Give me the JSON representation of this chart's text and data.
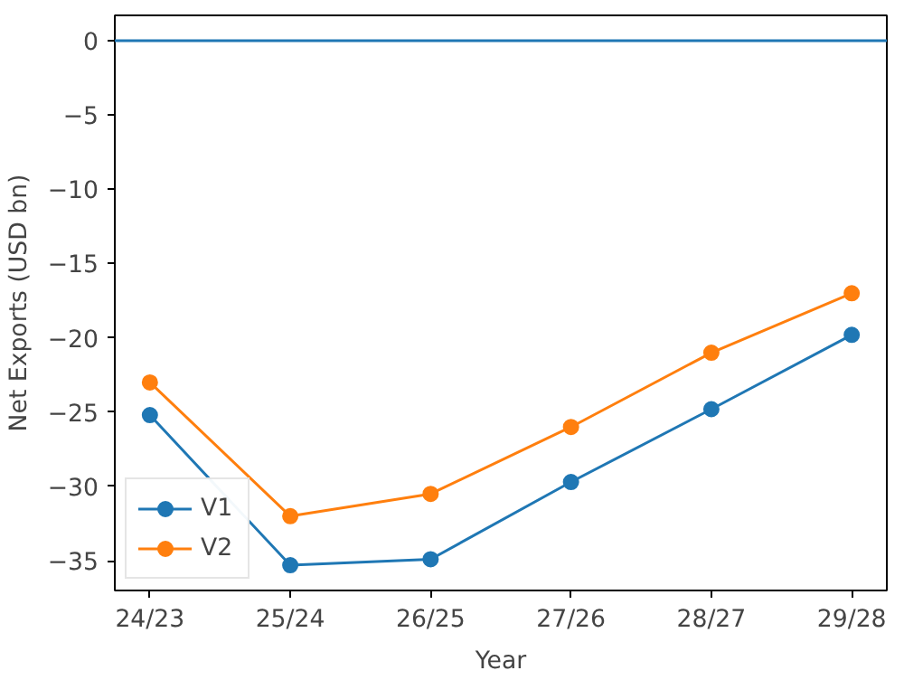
{
  "chart_data": {
    "type": "line",
    "xlabel": "Year",
    "ylabel": "Net Exports (USD bn)",
    "categories": [
      "24/23",
      "25/24",
      "26/25",
      "27/26",
      "28/27",
      "29/28"
    ],
    "series": [
      {
        "name": "V1",
        "color": "#1f77b4",
        "values": [
          -25.2,
          -35.3,
          -34.9,
          -29.7,
          -24.8,
          -19.8
        ]
      },
      {
        "name": "V2",
        "color": "#ff7f0e",
        "values": [
          -23.0,
          -32.0,
          -30.5,
          -26.0,
          -21.0,
          -17.0
        ]
      }
    ],
    "ylim": [
      -37,
      1.7
    ],
    "yticks": [
      {
        "value": 0,
        "label": "0"
      },
      {
        "value": -5,
        "label": "−5"
      },
      {
        "value": -10,
        "label": "−10"
      },
      {
        "value": -15,
        "label": "−15"
      },
      {
        "value": -20,
        "label": "−20"
      },
      {
        "value": -25,
        "label": "−25"
      },
      {
        "value": -30,
        "label": "−30"
      },
      {
        "value": -35,
        "label": "−35"
      }
    ],
    "ref_lines": [
      {
        "axis": "y",
        "value": 0,
        "color": "#1f77b4"
      }
    ],
    "legend": "bottom left",
    "marker": "circle",
    "line_style": "solid",
    "grid": false
  }
}
